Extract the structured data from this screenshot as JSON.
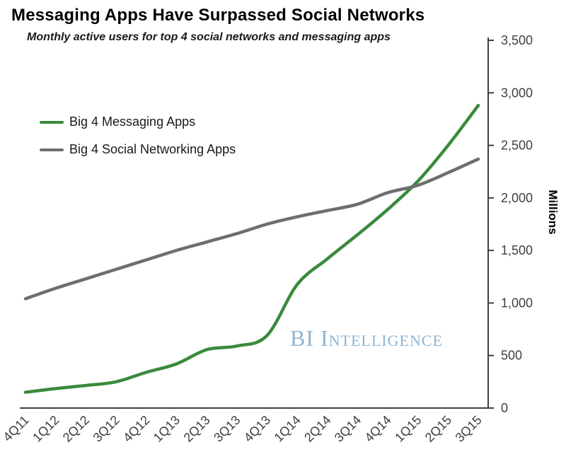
{
  "chart_data": {
    "type": "line",
    "title": "Messaging Apps Have Surpassed Social Networks",
    "subtitle": "Monthly active users for top 4 social networks and messaging apps",
    "categories": [
      "4Q11",
      "1Q12",
      "2Q12",
      "3Q12",
      "4Q12",
      "1Q13",
      "2Q13",
      "3Q13",
      "4Q13",
      "1Q14",
      "2Q14",
      "3Q14",
      "4Q14",
      "1Q15",
      "2Q15",
      "3Q15"
    ],
    "series": [
      {
        "name": "Big 4 Messaging Apps",
        "color": "#3a8a3c",
        "values": [
          150,
          185,
          215,
          250,
          340,
          420,
          555,
          590,
          690,
          1175,
          1420,
          1650,
          1890,
          2160,
          2500,
          2880
        ]
      },
      {
        "name": "Big 4 Social Networking Apps",
        "color": "#6d6e70",
        "values": [
          1040,
          1140,
          1230,
          1320,
          1410,
          1500,
          1580,
          1660,
          1750,
          1820,
          1880,
          1940,
          2050,
          2120,
          2240,
          2370
        ]
      }
    ],
    "ylabel": "Millions",
    "xlabel": "",
    "ylim": [
      0,
      3500
    ],
    "ytick_step": 500,
    "ytick_labels": [
      "0",
      "500",
      "1,000",
      "1,500",
      "2,000",
      "2,500",
      "3,000",
      "3,500"
    ],
    "grid": false,
    "legend_position": "inside-top-left",
    "watermark": "BI Intelligence",
    "axis_color": "#404040",
    "tick_label_color": "#3f3f3f"
  }
}
